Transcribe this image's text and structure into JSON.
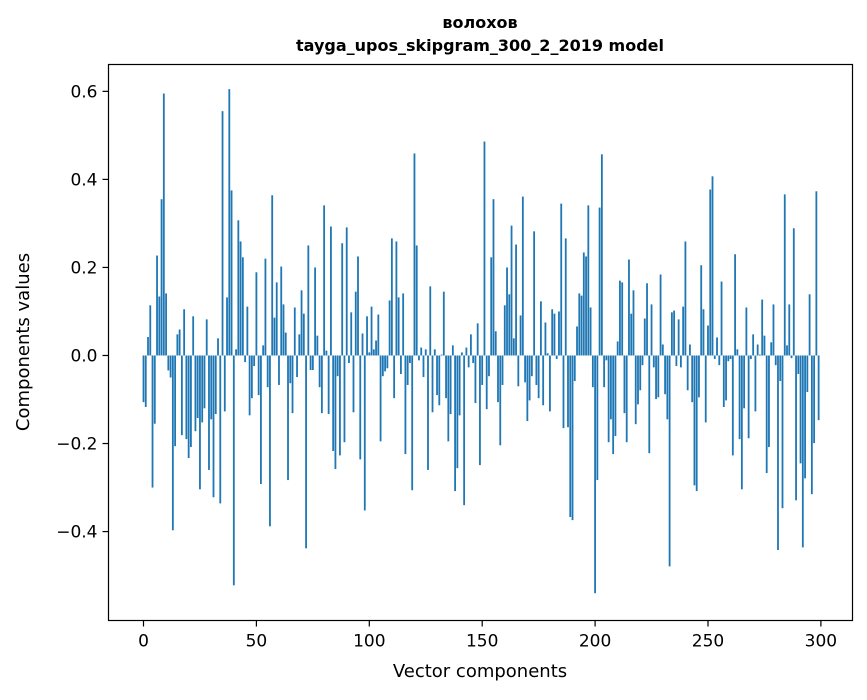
{
  "chart_data": {
    "type": "bar",
    "title": [
      "волохов",
      "tayga_upos_skipgram_300_2_2019 model"
    ],
    "xlabel": "Vector components",
    "ylabel": "Components values",
    "xlim": [
      -15.5,
      314
    ],
    "ylim": [
      -0.602,
      0.661
    ],
    "xticks": [
      0,
      50,
      100,
      150,
      200,
      250,
      300
    ],
    "xtick_labels": [
      "0",
      "50",
      "100",
      "150",
      "200",
      "250",
      "300"
    ],
    "yticks": [
      -0.4,
      -0.2,
      0.0,
      0.2,
      0.4,
      0.6
    ],
    "ytick_labels": [
      "−0.4",
      "−0.2",
      "0.0",
      "0.2",
      "0.4",
      "0.6"
    ],
    "grid": false,
    "color": "#1f77b4",
    "values": [
      -0.106,
      -0.117,
      0.042,
      0.114,
      -0.3,
      -0.155,
      0.227,
      0.134,
      0.355,
      0.595,
      0.141,
      -0.034,
      -0.05,
      -0.397,
      -0.206,
      0.048,
      0.059,
      -0.181,
      0.105,
      -0.19,
      -0.233,
      -0.208,
      0.089,
      -0.172,
      -0.142,
      -0.304,
      -0.152,
      -0.12,
      0.082,
      -0.26,
      -0.145,
      -0.322,
      -0.133,
      0.039,
      -0.336,
      0.555,
      -0.127,
      0.132,
      0.605,
      0.375,
      -0.522,
      0.014,
      0.307,
      0.259,
      0.223,
      -0.015,
      0.111,
      -0.136,
      -0.097,
      -0.024,
      0.189,
      -0.09,
      -0.292,
      0.023,
      0.22,
      -0.072,
      -0.388,
      0.364,
      0.086,
      0.166,
      -0.067,
      0.202,
      0.116,
      0.052,
      -0.283,
      -0.063,
      -0.131,
      0.109,
      -0.049,
      0.048,
      0.148,
      0.095,
      -0.438,
      0.25,
      -0.033,
      -0.033,
      0.2,
      0.045,
      -0.072,
      -0.131,
      0.341,
      0.011,
      -0.133,
      0.293,
      -0.217,
      -0.258,
      -0.047,
      -0.227,
      0.255,
      -0.197,
      0.291,
      -0.017,
      0.098,
      -0.129,
      0.145,
      0.225,
      -0.236,
      0.05,
      -0.352,
      0.089,
      0.007,
      0.111,
      0.014,
      0.034,
      0.093,
      -0.195,
      -0.047,
      -0.036,
      -0.029,
      0.125,
      0.266,
      -0.097,
      0.259,
      0.132,
      -0.042,
      0.141,
      -0.224,
      -0.067,
      -0.017,
      -0.306,
      0.459,
      0.25,
      -0.011,
      0.018,
      -0.049,
      0.014,
      -0.26,
      0.157,
      -0.129,
      0.014,
      -0.09,
      -0.113,
      0.002,
      0.145,
      -0.097,
      -0.195,
      -0.133,
      0.023,
      -0.308,
      -0.256,
      -0.136,
      0.007,
      -0.34,
      0.018,
      -0.027,
      0.048,
      -0.017,
      -0.108,
      0.073,
      -0.249,
      -0.067,
      0.486,
      -0.122,
      -0.047,
      0.223,
      0.355,
      0.055,
      -0.106,
      -0.204,
      -0.067,
      0.114,
      0.2,
      0.139,
      0.295,
      0.039,
      0.252,
      -0.07,
      0.091,
      0.361,
      -0.061,
      -0.149,
      -0.102,
      -0.047,
      0.282,
      -0.067,
      -0.097,
      0.123,
      -0.113,
      0.075,
      0.005,
      -0.127,
      0.105,
      0.095,
      -0.008,
      0.1,
      0.345,
      -0.165,
      0.266,
      -0.163,
      -0.367,
      -0.374,
      -0.058,
      0.066,
      0.141,
      0.136,
      0.234,
      0.225,
      0.341,
      0.109,
      -0.072,
      -0.54,
      -0.283,
      0.336,
      0.457,
      -0.072,
      -0.011,
      -0.197,
      -0.145,
      -0.224,
      -0.183,
      0.032,
      0.17,
      0.166,
      -0.131,
      -0.197,
      0.218,
      0.095,
      0.148,
      -0.156,
      -0.111,
      -0.079,
      -0.022,
      0.084,
      0.164,
      -0.222,
      0.116,
      -0.027,
      -0.099,
      -0.095,
      0.184,
      0.025,
      -0.088,
      -0.145,
      -0.479,
      0.098,
      0.102,
      -0.024,
      0.082,
      -0.027,
      0.111,
      0.259,
      -0.079,
      0.025,
      -0.106,
      -0.295,
      -0.308,
      -0.095,
      0.205,
      0.105,
      -0.152,
      0.068,
      0.377,
      0.407,
      -0.008,
      0.041,
      -0.022,
      0.168,
      -0.117,
      -0.102,
      -0.013,
      -0.008,
      -0.227,
      0.23,
      0.014,
      -0.19,
      -0.304,
      -0.12,
      0.109,
      -0.188,
      -0.008,
      0.048,
      -0.127,
      0.025,
      0.002,
      0.127,
      0.045,
      -0.267,
      -0.208,
      0.03,
      0.116,
      -0.022,
      -0.442,
      -0.058,
      -0.347,
      0.366,
      0.023,
      0.116,
      -0.006,
      0.289,
      -0.329,
      -0.042,
      -0.245,
      -0.436,
      -0.279,
      -0.083,
      0.139,
      -0.315,
      -0.199,
      0.373,
      -0.147
    ]
  }
}
